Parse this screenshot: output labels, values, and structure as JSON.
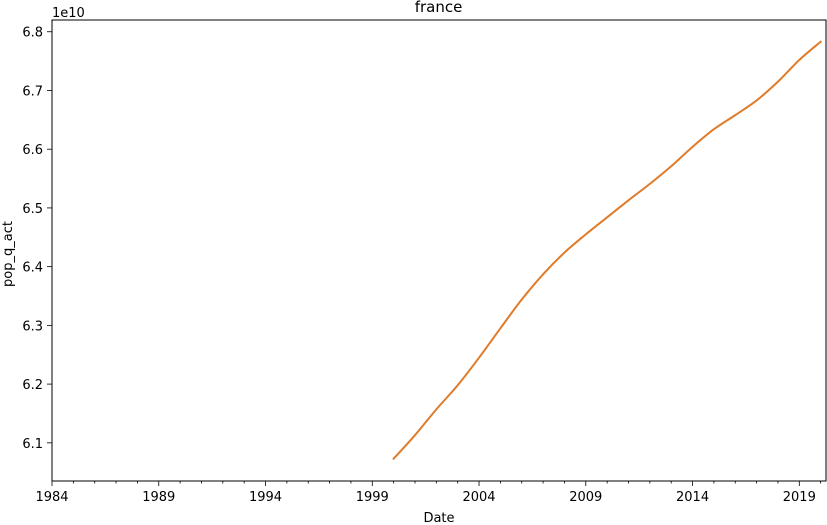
{
  "chart_data": {
    "type": "line",
    "title": "france",
    "xlabel": "Date",
    "ylabel": "pop_q_act",
    "y_offset_label": "1e10",
    "xlim": [
      1984.0,
      2020.25
    ],
    "ylim": [
      6.035,
      6.82
    ],
    "x_ticks": [
      1984,
      1989,
      1994,
      1999,
      2004,
      2009,
      2014,
      2019
    ],
    "x_tick_labels": [
      "1984",
      "1989",
      "1994",
      "1999",
      "2004",
      "2009",
      "2014",
      "2019"
    ],
    "y_ticks": [
      6.1,
      6.2,
      6.3,
      6.4,
      6.5,
      6.6,
      6.7,
      6.8
    ],
    "y_tick_labels": [
      "6.1",
      "6.2",
      "6.3",
      "6.4",
      "6.5",
      "6.6",
      "6.7",
      "6.8"
    ],
    "grid": false,
    "series": [
      {
        "color": "#e07b2a",
        "x": [
          2000.0,
          2001.0,
          2002.0,
          2003.0,
          2004.0,
          2005.0,
          2006.0,
          2007.0,
          2008.0,
          2009.0,
          2010.0,
          2011.0,
          2012.0,
          2013.0,
          2014.0,
          2015.0,
          2016.0,
          2017.0,
          2018.0,
          2019.0,
          2020.0
        ],
        "values": [
          6.073,
          6.113,
          6.157,
          6.198,
          6.245,
          6.295,
          6.344,
          6.387,
          6.424,
          6.455,
          6.484,
          6.513,
          6.541,
          6.571,
          6.604,
          6.634,
          6.658,
          6.683,
          6.715,
          6.752,
          6.783
        ]
      }
    ]
  }
}
